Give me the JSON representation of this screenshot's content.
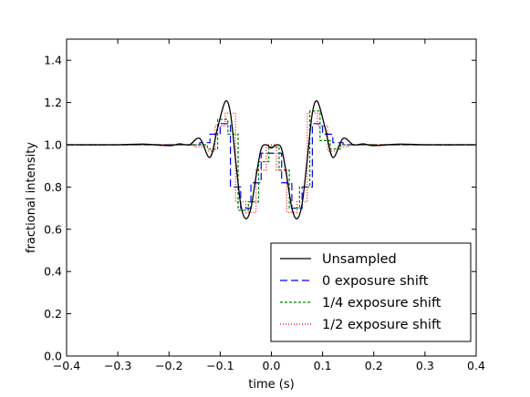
{
  "chart_data": {
    "type": "line",
    "title": "",
    "xlabel": "time (s)",
    "ylabel": "fractional intensity",
    "xlim": [
      -0.4,
      0.4
    ],
    "ylim": [
      0.0,
      1.5
    ],
    "x_ticks": [
      "−0.4",
      "−0.3",
      "−0.2",
      "−0.1",
      "0.0",
      "0.1",
      "0.2",
      "0.3",
      "0.4"
    ],
    "x_tick_values": [
      -0.4,
      -0.3,
      -0.2,
      -0.1,
      0.0,
      0.1,
      0.2,
      0.3,
      0.4
    ],
    "y_ticks": [
      "0.0",
      "0.2",
      "0.4",
      "0.6",
      "0.8",
      "1.0",
      "1.2",
      "1.4"
    ],
    "y_tick_values": [
      0.0,
      0.2,
      0.4,
      0.6,
      0.8,
      1.0,
      1.2,
      1.4
    ],
    "grid": false,
    "legend_position": "lower-right",
    "series": [
      {
        "name": "Unsampled",
        "color": "#000000",
        "style": "solid",
        "x": [
          -0.4,
          -0.3,
          -0.25,
          -0.2,
          -0.18,
          -0.16,
          -0.14,
          -0.12,
          -0.105,
          -0.09,
          -0.08,
          -0.07,
          -0.06,
          -0.05,
          -0.04,
          -0.03,
          -0.02,
          -0.01,
          0.0,
          0.01,
          0.02,
          0.03,
          0.04,
          0.05,
          0.06,
          0.07,
          0.08,
          0.09,
          0.105,
          0.12,
          0.14,
          0.16,
          0.18,
          0.2,
          0.25,
          0.3,
          0.4
        ],
        "y": [
          1.0,
          1.0,
          1.003,
          0.996,
          1.004,
          1.0,
          1.03,
          0.94,
          1.08,
          1.205,
          1.15,
          0.93,
          0.72,
          0.65,
          0.7,
          0.85,
          0.98,
          1.0,
          0.985,
          1.0,
          0.98,
          0.85,
          0.7,
          0.65,
          0.72,
          0.93,
          1.15,
          1.205,
          1.08,
          0.94,
          1.03,
          1.0,
          1.004,
          0.996,
          1.003,
          1.0,
          1.0
        ]
      },
      {
        "name": "0 exposure shift",
        "color": "#0000ff",
        "style": "dashed",
        "step_width": 0.02,
        "x": [
          -0.4,
          -0.15,
          -0.13,
          -0.11,
          -0.09,
          -0.07,
          -0.05,
          -0.03,
          -0.01,
          0.01,
          0.03,
          0.05,
          0.07,
          0.09,
          0.11,
          0.13,
          0.15,
          0.4
        ],
        "y": [
          1.0,
          1.0,
          1.01,
          1.05,
          1.1,
          0.8,
          0.7,
          0.82,
          0.96,
          0.96,
          0.82,
          0.7,
          0.8,
          1.1,
          1.05,
          1.01,
          1.0,
          1.0
        ]
      },
      {
        "name": "1/4 exposure shift",
        "color": "#008000",
        "style": "dashed-small",
        "step_width": 0.02,
        "x": [
          -0.4,
          -0.155,
          -0.135,
          -0.115,
          -0.095,
          -0.075,
          -0.055,
          -0.035,
          -0.015,
          0.005,
          0.025,
          0.045,
          0.065,
          0.085,
          0.105,
          0.125,
          0.145,
          0.4
        ],
        "y": [
          1.0,
          1.0,
          1.0,
          0.98,
          1.12,
          1.05,
          0.69,
          0.73,
          0.92,
          0.99,
          0.88,
          0.7,
          0.8,
          1.16,
          1.02,
          0.98,
          1.0,
          1.0
        ]
      },
      {
        "name": "1/2 exposure shift",
        "color": "#ff0000",
        "style": "dotted",
        "step_width": 0.02,
        "x": [
          -0.4,
          -0.16,
          -0.14,
          -0.12,
          -0.1,
          -0.08,
          -0.06,
          -0.04,
          -0.02,
          0.0,
          0.02,
          0.04,
          0.06,
          0.08,
          0.1,
          0.12,
          0.14,
          0.16,
          0.4
        ],
        "y": [
          1.0,
          1.0,
          0.99,
          0.97,
          1.09,
          1.15,
          0.73,
          0.68,
          0.88,
          1.0,
          0.88,
          0.68,
          0.73,
          1.15,
          1.09,
          0.97,
          0.99,
          1.0,
          1.0
        ]
      }
    ]
  }
}
